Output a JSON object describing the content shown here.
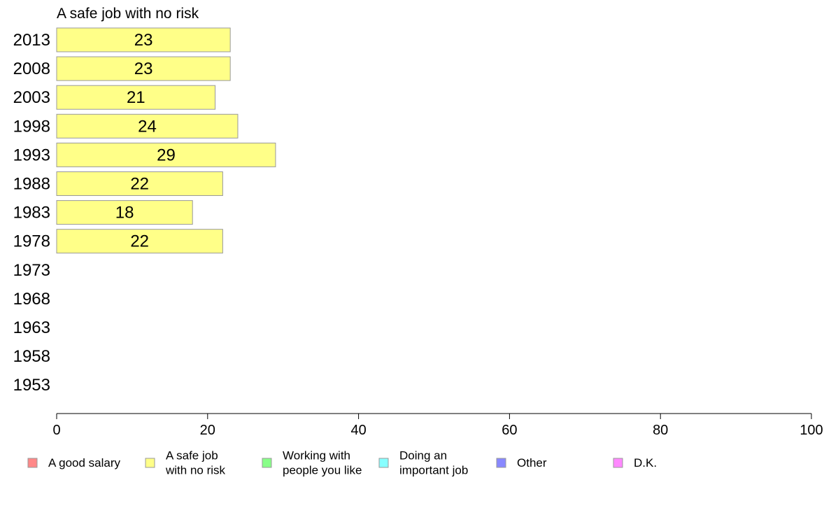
{
  "chart_data": {
    "type": "bar",
    "orientation": "horizontal",
    "title": "A safe job with no risk",
    "categories": [
      "2013",
      "2008",
      "2003",
      "1998",
      "1993",
      "1988",
      "1983",
      "1978",
      "1973",
      "1968",
      "1963",
      "1958",
      "1953"
    ],
    "series": [
      {
        "name": "A safe job with no risk",
        "color": "#ffff88",
        "values": [
          23,
          23,
          21,
          24,
          29,
          22,
          18,
          22,
          null,
          null,
          null,
          null,
          null
        ],
        "labels": [
          "23",
          "23",
          "21",
          "24",
          "29",
          "22",
          "18",
          "22",
          "",
          "",
          "",
          "",
          ""
        ]
      }
    ],
    "xlim": [
      0,
      100
    ],
    "xticks": [
      0,
      20,
      40,
      60,
      80,
      100
    ],
    "grid": false,
    "legend_position": "bottom",
    "legend": [
      {
        "lines": [
          "A good salary"
        ],
        "color": "#ff8888"
      },
      {
        "lines": [
          "A safe job",
          "with no risk"
        ],
        "color": "#ffff88"
      },
      {
        "lines": [
          "Working with",
          "people you like"
        ],
        "color": "#88ff88"
      },
      {
        "lines": [
          "Doing an",
          "important job"
        ],
        "color": "#88ffff"
      },
      {
        "lines": [
          "Other"
        ],
        "color": "#8888ff"
      },
      {
        "lines": [
          "D.K."
        ],
        "color": "#ff88ff"
      }
    ]
  }
}
